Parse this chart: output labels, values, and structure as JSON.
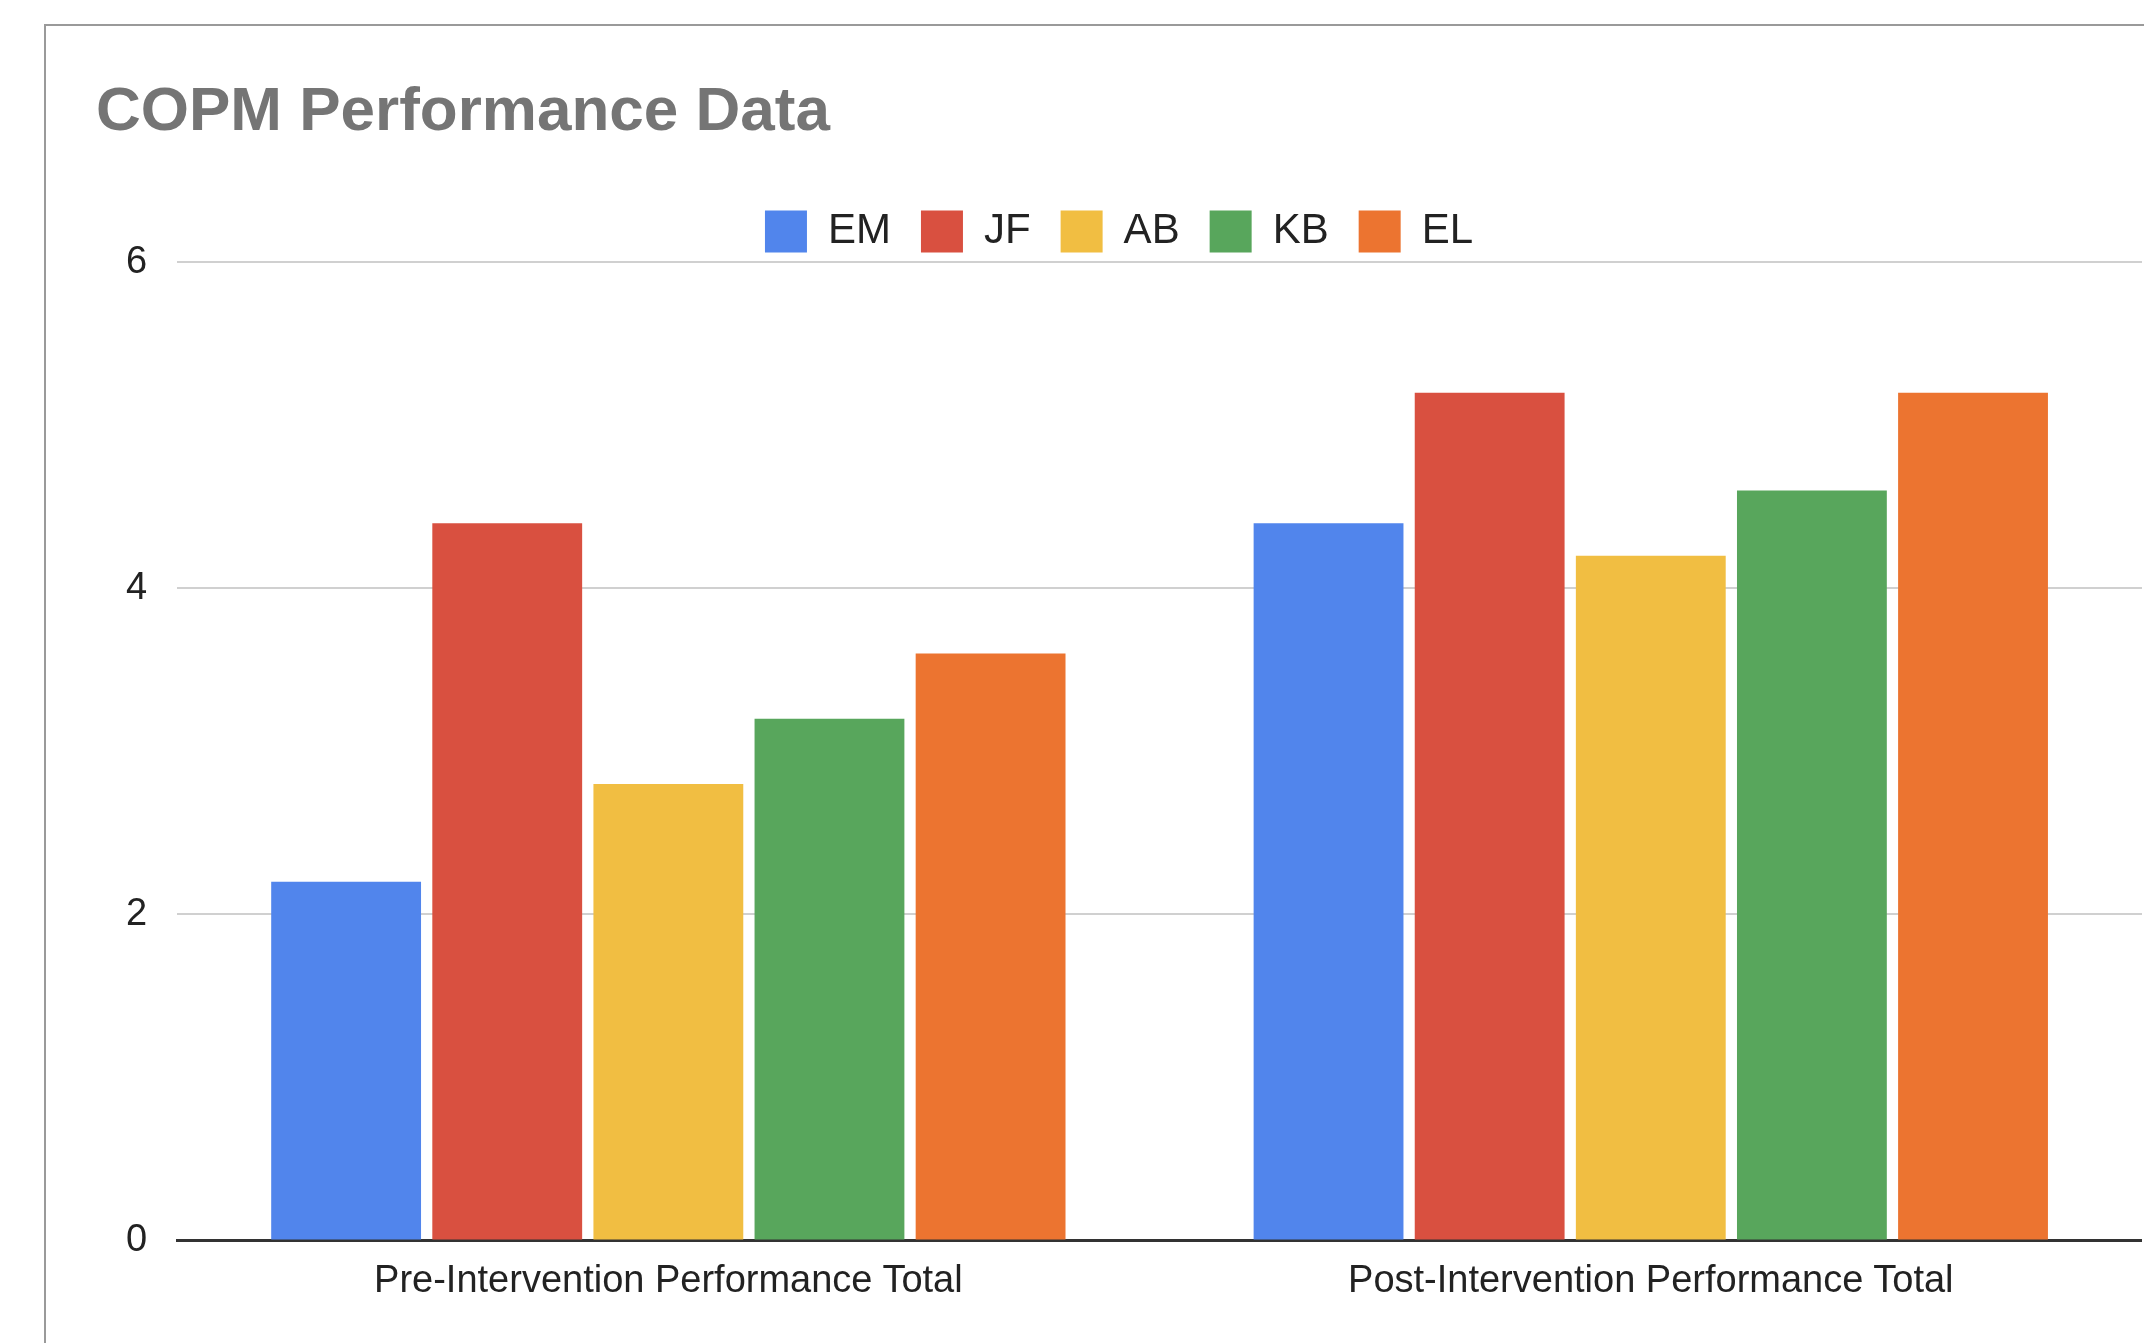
{
  "chart_data": {
    "type": "bar",
    "title": "COPM Performance Data",
    "categories": [
      "Pre-Intervention Performance Total",
      "Post-Intervention Performance Total"
    ],
    "series": [
      {
        "name": "EM",
        "color": "#5185ec",
        "values": [
          2.2,
          4.4
        ]
      },
      {
        "name": "JF",
        "color": "#d95040",
        "values": [
          4.4,
          5.2
        ]
      },
      {
        "name": "AB",
        "color": "#f1be42",
        "values": [
          2.8,
          4.2
        ]
      },
      {
        "name": "KB",
        "color": "#58a65c",
        "values": [
          3.2,
          4.6
        ]
      },
      {
        "name": "EL",
        "color": "#ec7430",
        "values": [
          3.6,
          5.2
        ]
      }
    ],
    "ylim": [
      0,
      6
    ],
    "yticks": [
      0,
      2,
      4,
      6
    ],
    "grid": "y",
    "legend": "top"
  }
}
